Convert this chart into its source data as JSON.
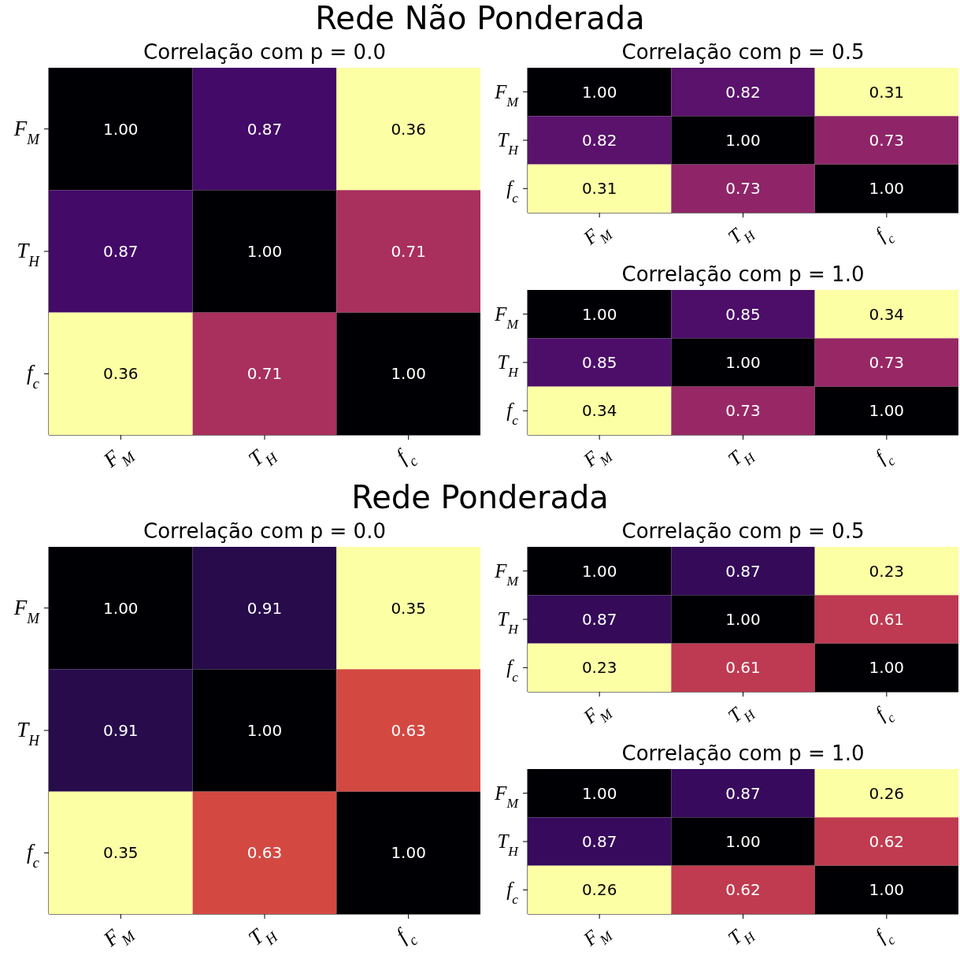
{
  "chart_data": [
    {
      "type": "heatmap",
      "title": "Correlação com p = 0.0",
      "annotations": [
        "Rede Não Ponderada"
      ],
      "categories": [
        "F$_{M}$",
        "T$_{H}$",
        "f$_{c}$"
      ],
      "y_categories": [
        "F$_{M}$",
        "T$_{H}$",
        "f$_{c}$"
      ],
      "cells": [
        [
          1.0,
          0.87,
          0.36
        ],
        [
          0.87,
          1.0,
          0.71
        ],
        [
          0.36,
          0.71,
          1.0
        ]
      ],
      "cell_labels": [
        [
          "1.00",
          "0.87",
          "0.36"
        ],
        [
          "0.87",
          "1.00",
          "0.71"
        ],
        [
          "0.36",
          "0.71",
          "1.00"
        ]
      ]
    },
    {
      "type": "heatmap",
      "title": "Correlação com p = 0.5",
      "categories": [
        "F$_{M}$",
        "T$_{H}$",
        "f$_{c}$"
      ],
      "y_categories": [
        "F$_{M}$",
        "T$_{H}$",
        "f$_{c}$"
      ],
      "cells": [
        [
          1.0,
          0.82,
          0.31
        ],
        [
          0.82,
          1.0,
          0.73
        ],
        [
          0.31,
          0.73,
          1.0
        ]
      ],
      "cell_labels": [
        [
          "1.00",
          "0.82",
          "0.31"
        ],
        [
          "0.82",
          "1.00",
          "0.73"
        ],
        [
          "0.31",
          "0.73",
          "1.00"
        ]
      ]
    },
    {
      "type": "heatmap",
      "title": "Correlação com p = 1.0",
      "categories": [
        "F$_{M}$",
        "T$_{H}$",
        "f$_{c}$"
      ],
      "y_categories": [
        "F$_{M}$",
        "T$_{H}$",
        "f$_{c}$"
      ],
      "cells": [
        [
          1.0,
          0.85,
          0.34
        ],
        [
          0.85,
          1.0,
          0.73
        ],
        [
          0.34,
          0.73,
          1.0
        ]
      ],
      "cell_labels": [
        [
          "1.00",
          "0.85",
          "0.34"
        ],
        [
          "0.85",
          "1.00",
          "0.73"
        ],
        [
          "0.34",
          "0.73",
          "1.00"
        ]
      ]
    },
    {
      "type": "heatmap",
      "title": "Correlação com p = 0.0",
      "annotations": [
        "Rede Ponderada"
      ],
      "categories": [
        "F$_{M}$",
        "T$_{H}$",
        "f$_{c}$"
      ],
      "y_categories": [
        "F$_{M}$",
        "T$_{H}$",
        "f$_{c}$"
      ],
      "cells": [
        [
          1.0,
          0.91,
          0.35
        ],
        [
          0.91,
          1.0,
          0.63
        ],
        [
          0.35,
          0.63,
          1.0
        ]
      ],
      "cell_labels": [
        [
          "1.00",
          "0.91",
          "0.35"
        ],
        [
          "0.91",
          "1.00",
          "0.63"
        ],
        [
          "0.35",
          "0.63",
          "1.00"
        ]
      ]
    },
    {
      "type": "heatmap",
      "title": "Correlação com p = 0.5",
      "categories": [
        "F$_{M}$",
        "T$_{H}$",
        "f$_{c}$"
      ],
      "y_categories": [
        "F$_{M}$",
        "T$_{H}$",
        "f$_{c}$"
      ],
      "cells": [
        [
          1.0,
          0.87,
          0.23
        ],
        [
          0.87,
          1.0,
          0.61
        ],
        [
          0.23,
          0.61,
          1.0
        ]
      ],
      "cell_labels": [
        [
          "1.00",
          "0.87",
          "0.23"
        ],
        [
          "0.87",
          "1.00",
          "0.61"
        ],
        [
          "0.23",
          "0.61",
          "1.00"
        ]
      ]
    },
    {
      "type": "heatmap",
      "title": "Correlação com p = 1.0",
      "categories": [
        "F$_{M}$",
        "T$_{H}$",
        "f$_{c}$"
      ],
      "y_categories": [
        "F$_{M}$",
        "T$_{H}$",
        "f$_{c}$"
      ],
      "cells": [
        [
          1.0,
          0.87,
          0.26
        ],
        [
          0.87,
          1.0,
          0.62
        ],
        [
          0.26,
          0.62,
          1.0
        ]
      ],
      "cell_labels": [
        [
          "1.00",
          "0.87",
          "0.26"
        ],
        [
          "0.87",
          "1.00",
          "0.62"
        ],
        [
          "0.26",
          "0.62",
          "1.00"
        ]
      ]
    }
  ]
}
